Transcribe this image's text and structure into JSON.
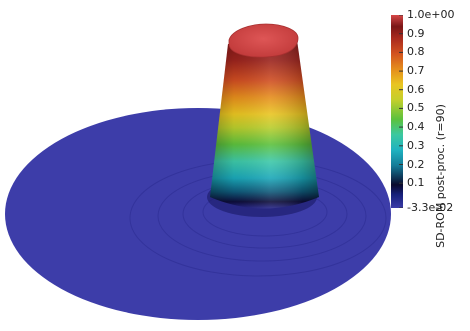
{
  "colorbar": {
    "title": "SD-ROM post-proc. (r=90)",
    "ticks": [
      {
        "value": 1.0,
        "label": "1.0e+00"
      },
      {
        "value": 0.9,
        "label": "0.9"
      },
      {
        "value": 0.8,
        "label": "0.8"
      },
      {
        "value": 0.7,
        "label": "0.7"
      },
      {
        "value": 0.6,
        "label": "0.6"
      },
      {
        "value": 0.5,
        "label": "0.5"
      },
      {
        "value": 0.4,
        "label": "0.4"
      },
      {
        "value": 0.3,
        "label": "0.3"
      },
      {
        "value": 0.2,
        "label": "0.2"
      },
      {
        "value": 0.1,
        "label": "0.1"
      },
      {
        "value": -0.033,
        "label": "-3.3e-02"
      }
    ],
    "range": [
      -0.033,
      1.0
    ],
    "colormap": [
      "#3b3ba8",
      "#16207a",
      "#0a0a2e",
      "#17a5b5",
      "#34d0c0",
      "#4cc04a",
      "#c8cf2a",
      "#e8b020",
      "#e07a1a",
      "#c83a22",
      "#8c1f1c",
      "#d24a4a"
    ]
  },
  "surface": {
    "base_color": "#3b3ba8",
    "top_color": "#d64747"
  }
}
